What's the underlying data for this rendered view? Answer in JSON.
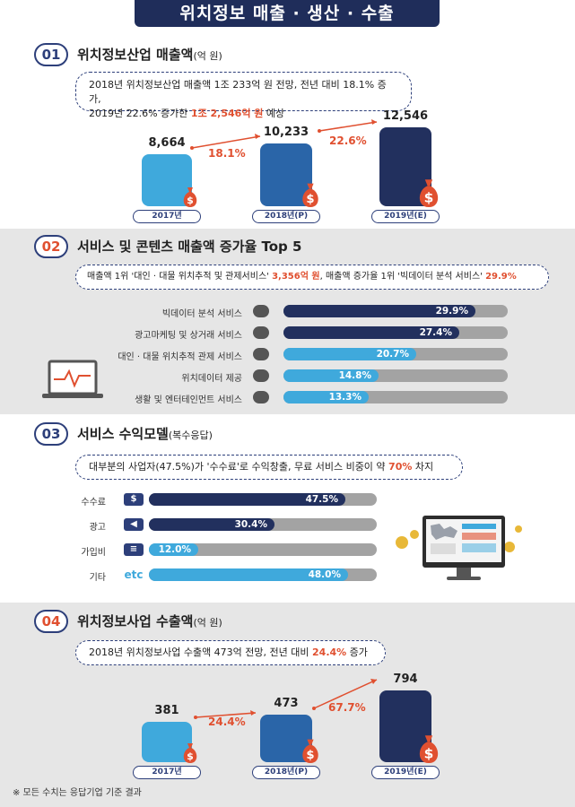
{
  "header": {
    "title": "위치정보 매출 · 생산 · 수출"
  },
  "section1": {
    "num": "01",
    "title": "위치정보산업 매출액",
    "unit": "(억 원)",
    "note_line1": "2018년 위치정보산업 매출액 1조 233억 원 전망, 전년 대비 18.1% 증가,",
    "note_line2_a": "2019년 22.6% 증가한 ",
    "note_line2_hl": "1조 2,546억 원",
    "note_line2_b": " 예상",
    "growth1": "18.1%",
    "growth2": "22.6%"
  },
  "section2": {
    "num": "02",
    "title": "서비스 및 콘텐츠 매출액 증가율 Top 5",
    "note_a": "매출액 1위 '대인 · 대물 위치추적 및 관제서비스' ",
    "note_hl1": "3,356억 원",
    "note_b": ", 매출액 증가율 1위 '빅데이터 분석 서비스' ",
    "note_hl2": "29.9%"
  },
  "section3": {
    "num": "03",
    "title": "서비스 수익모델",
    "unit": "(복수응답)",
    "note_a": "대부분의 사업자(47.5%)가 '수수료'로 수익창출, 무료 서비스 비중이 약 ",
    "note_hl": "70%",
    "note_b": " 차지",
    "etc_icon": "etc"
  },
  "section4": {
    "num": "04",
    "title": "위치정보사업 수출액",
    "unit": "(억 원)",
    "note_a": "2018년 위치정보사업 수출액 473억 전망, 전년 대비 ",
    "note_hl": "24.4%",
    "note_b": " 증가",
    "growth1": "24.4%",
    "growth2": "67.7%"
  },
  "footnote": "※ 모든 수치는 응답기업 기준 결과",
  "colors": {
    "light": "#3fa9dc",
    "mid": "#2a65a8",
    "dark": "#22305e",
    "accent": "#e05030",
    "track": "#a3a3a3"
  },
  "chart_data": [
    {
      "type": "bar",
      "title": "위치정보산업 매출액",
      "categories": [
        "2017년",
        "2018년(P)",
        "2019년(E)"
      ],
      "values": [
        8664,
        10233,
        12546
      ],
      "value_labels": [
        "8,664",
        "10,233",
        "12,546"
      ]
    },
    {
      "type": "bar",
      "orientation": "horizontal",
      "title": "서비스 및 콘텐츠 매출액 증가율 Top 5",
      "categories": [
        "빅데이터 분석 서비스",
        "광고마케팅 및 상거래 서비스",
        "대인 · 대물 위치추적 관제 서비스",
        "위치데이터 제공",
        "생활 및 엔터테인먼트 서비스"
      ],
      "values": [
        29.9,
        27.4,
        20.7,
        14.8,
        13.3
      ],
      "value_labels": [
        "29.9%",
        "27.4%",
        "20.7%",
        "14.8%",
        "13.3%"
      ],
      "xlim": [
        0,
        35
      ]
    },
    {
      "type": "bar",
      "orientation": "horizontal",
      "title": "서비스 수익모델",
      "categories": [
        "수수료",
        "광고",
        "가입비",
        "기타"
      ],
      "values": [
        47.5,
        30.4,
        12.0,
        48.0
      ],
      "value_labels": [
        "47.5%",
        "30.4%",
        "12.0%",
        "48.0%"
      ],
      "xlim": [
        0,
        55
      ]
    },
    {
      "type": "bar",
      "title": "위치정보사업 수출액",
      "categories": [
        "2017년",
        "2018년(P)",
        "2019년(E)"
      ],
      "values": [
        381,
        473,
        794
      ],
      "value_labels": [
        "381",
        "473",
        "794"
      ]
    }
  ]
}
